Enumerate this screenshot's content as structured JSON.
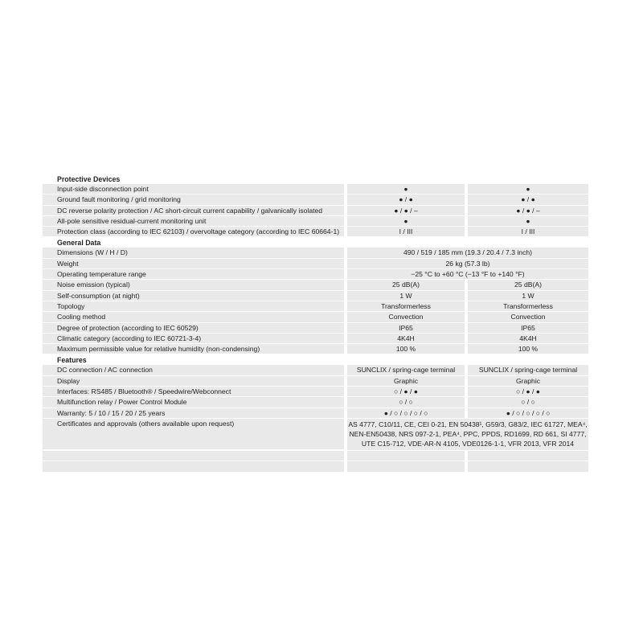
{
  "sections": [
    {
      "title": "Protective Devices",
      "rows": [
        {
          "label": "Input-side disconnection point",
          "v1": "●",
          "v2": "●"
        },
        {
          "label": "Ground fault monitoring / grid monitoring",
          "v1": "● / ●",
          "v2": "● / ●"
        },
        {
          "label": "DC reverse polarity protection / AC short-circuit current capability / galvanically isolated",
          "v1": "● / ● / –",
          "v2": "● / ● / –"
        },
        {
          "label": "All-pole sensitive residual-current monitoring unit",
          "v1": "●",
          "v2": "●"
        },
        {
          "label": "Protection class (according to IEC 62103) / overvoltage category (according to IEC 60664-1)",
          "v1": "I / III",
          "v2": "I / III"
        }
      ]
    },
    {
      "title": "General Data",
      "rows": [
        {
          "label": "Dimensions (W / H / D)",
          "span": "490 / 519 / 185 mm (19.3 / 20.4 / 7.3 inch)"
        },
        {
          "label": "Weight",
          "span": "26 kg (57.3 lb)"
        },
        {
          "label": "Operating temperature range",
          "span": "−25 °C to +60 °C (−13 °F to +140 °F)"
        },
        {
          "label": "Noise emission (typical)",
          "v1": "25 dB(A)",
          "v2": "25 dB(A)"
        },
        {
          "label": "Self-consumption (at night)",
          "v1": "1 W",
          "v2": "1 W"
        },
        {
          "label": "Topology",
          "v1": "Transformerless",
          "v2": "Transformerless"
        },
        {
          "label": "Cooling method",
          "v1": "Convection",
          "v2": "Convection"
        },
        {
          "label": "Degree of protection (according to IEC 60529)",
          "v1": "IP65",
          "v2": "IP65"
        },
        {
          "label": "Climatic category (according to IEC 60721-3-4)",
          "v1": "4K4H",
          "v2": "4K4H"
        },
        {
          "label": "Maximum permissible value for relative humidity (non-condensing)",
          "v1": "100 %",
          "v2": "100 %"
        }
      ]
    },
    {
      "title": "Features",
      "rows": [
        {
          "label": "DC connection / AC connection",
          "v1": "SUNCLIX / spring-cage terminal",
          "v2": "SUNCLIX / spring-cage terminal"
        },
        {
          "label": "Display",
          "v1": "Graphic",
          "v2": "Graphic"
        },
        {
          "label": "Interfaces: RS485 / Bluetooth® / Speedwire/Webconnect",
          "v1": "○ / ● / ●",
          "v2": "○ / ● / ●"
        },
        {
          "label": "Multifunction relay / Power Control Module",
          "v1": "○ / ○",
          "v2": "○ / ○"
        },
        {
          "label": "Warranty: 5 / 10 / 15 / 20 / 25 years",
          "v1": "● / ○ / ○ / ○ / ○",
          "v2": "● / ○ / ○ / ○ / ○"
        }
      ]
    }
  ],
  "certificates": {
    "label": "Certificates and approvals (others available upon request)",
    "value": "AS 4777, C10/11, CE, CEI 0-21, EN 50438¹, G59/3, G83/2, IEC 61727, MEA⁴, NEN-EN50438, NRS 097-2-1, PEA⁴, PPC, PPDS, RD1699, RD 661, SI 4777, UTE C15-712, VDE-AR-N 4105, VDE0126-1-1, VFR 2013, VFR 2014"
  }
}
